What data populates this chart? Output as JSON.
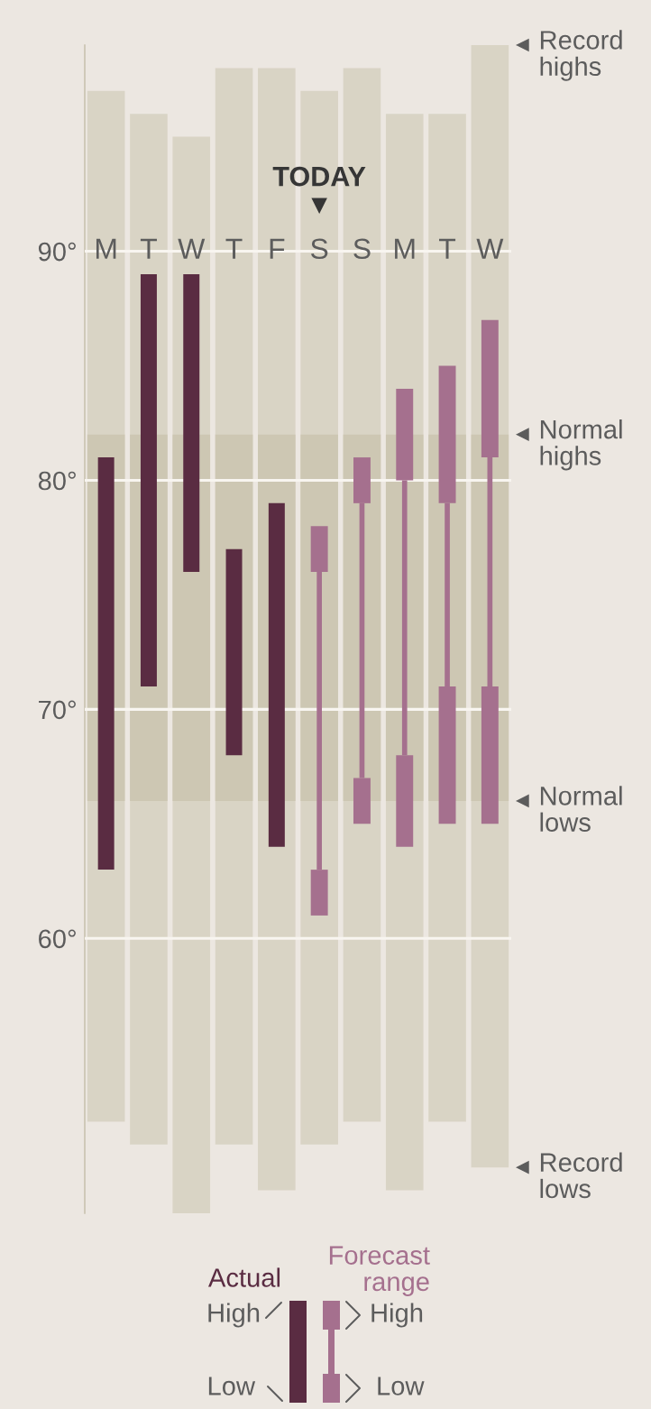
{
  "chart_data": {
    "type": "bar",
    "categories": [
      "M",
      "T",
      "W",
      "T",
      "F",
      "S",
      "S",
      "M",
      "T",
      "W"
    ],
    "series": [
      {
        "color": "#d9d4c5",
        "base": [
          52,
          51,
          48,
          51,
          49,
          51,
          52,
          49,
          52,
          50
        ],
        "values": [
          45,
          45,
          47,
          47,
          49,
          46,
          46,
          47,
          44,
          49
        ]
      },
      {
        "color": "#cdc7b3",
        "base": [
          66,
          66,
          66,
          66,
          66,
          66,
          66,
          66,
          66,
          66
        ],
        "values": [
          16,
          16,
          16,
          16,
          16,
          16,
          16,
          16,
          16,
          16
        ]
      },
      {
        "name": "Actual",
        "color": "#5a2c42",
        "base": [
          63,
          71,
          76,
          68,
          64,
          null,
          null,
          null,
          null,
          null
        ],
        "values": [
          18,
          18,
          13,
          9,
          15,
          null,
          null,
          null,
          null,
          null
        ]
      },
      {
        "name": "Forecast range",
        "color": "#a5708e",
        "base": [
          null,
          null,
          null,
          null,
          null,
          63,
          67,
          68,
          71,
          71
        ],
        "values": [
          null,
          null,
          null,
          null,
          null,
          13,
          12,
          12,
          8,
          10
        ]
      },
      {
        "color": "#a5708e",
        "base": [
          null,
          null,
          null,
          null,
          null,
          76,
          79,
          80,
          79,
          81
        ],
        "values": [
          null,
          null,
          null,
          null,
          null,
          2,
          2,
          4,
          6,
          6
        ]
      },
      {
        "color": "#a5708e",
        "base": [
          null,
          null,
          null,
          null,
          null,
          61,
          65,
          64,
          65,
          65
        ],
        "values": [
          null,
          null,
          null,
          null,
          null,
          2,
          2,
          4,
          6,
          6
        ]
      }
    ],
    "ylim": [
      48,
      99
    ],
    "yticks": [
      {
        "value": 60,
        "label": "60°"
      },
      {
        "value": 70,
        "label": "70°"
      },
      {
        "value": 80,
        "label": "80°"
      },
      {
        "value": 90,
        "label": "90°"
      }
    ],
    "grid": "y",
    "legend": "bottom",
    "annotations": [
      {
        "text": "TODAY",
        "x": "S",
        "y": 92
      },
      "Record highs",
      "Normal highs",
      "Normal lows",
      "Record lows",
      "High",
      "Low",
      "High",
      "Low"
    ]
  }
}
